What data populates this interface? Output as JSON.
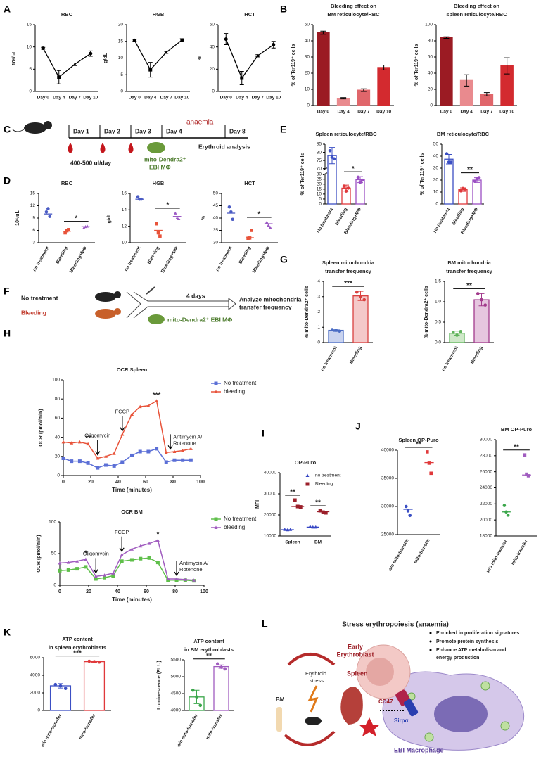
{
  "panel_labels": [
    "A",
    "B",
    "C",
    "D",
    "E",
    "F",
    "G",
    "H",
    "I",
    "J",
    "K",
    "L"
  ],
  "timeline": {
    "days": [
      "Day 1",
      "Day 2",
      "Day 3",
      "Day 4",
      "Day 8"
    ],
    "phase": "anaemia",
    "dose": "400-500 ul/day",
    "cells": [
      "mito-Dendra2⁺",
      "EBI MΦ"
    ],
    "readout": "Erythroid analysis"
  },
  "transfer_design": {
    "groups": [
      "No treatment",
      "Bleeding"
    ],
    "duration": "4 days",
    "readout": [
      "Analyze mitochondria",
      "transfer frequency"
    ],
    "cells": "mito-Dendra2⁺ EBI MΦ"
  },
  "model": {
    "title": "Stress erythropoiesis (anaemia)",
    "bullets": [
      "Enriched in proliferation signatures",
      "Promote protein synthesis",
      "Enhance ATP metabolism and",
      "energy production"
    ],
    "erythroblast": [
      "Early",
      "Erythroblast"
    ],
    "bm": "BM",
    "stress": [
      "Erythroid",
      "stress"
    ],
    "spleen": "Spleen",
    "ligand": "CD47",
    "receptor": "Sirpα",
    "macrophage": "EBI Macrophage"
  },
  "chart_data": [
    {
      "type": "line",
      "title": "RBC",
      "ylabel": "10⁶/uL",
      "categories": [
        "Day 0",
        "Day 4",
        "Day 7",
        "Day 10"
      ],
      "values": [
        9.7,
        3.2,
        6.1,
        8.5
      ],
      "errors": [
        0.2,
        1.5,
        0.3,
        0.6
      ],
      "color": "#000000",
      "ylim": [
        0,
        15
      ],
      "yticks": [
        0,
        5,
        10,
        15
      ]
    },
    {
      "type": "line",
      "title": "HGB",
      "ylabel": "g/dL",
      "categories": [
        "Day 0",
        "Day 4",
        "Day 7",
        "Day 10"
      ],
      "values": [
        15.3,
        6.5,
        11.7,
        15.4
      ],
      "errors": [
        0.3,
        2.2,
        0.3,
        0.4
      ],
      "color": "#000000",
      "ylim": [
        0,
        20
      ],
      "yticks": [
        0,
        5,
        10,
        15,
        20
      ]
    },
    {
      "type": "line",
      "title": "HCT",
      "ylabel": "%",
      "categories": [
        "Day 0",
        "Day 4",
        "Day 7",
        "Day 10"
      ],
      "values": [
        47,
        12,
        32,
        42
      ],
      "errors": [
        5,
        6,
        1,
        3
      ],
      "color": "#000000",
      "ylim": [
        0,
        60
      ],
      "yticks": [
        0,
        20,
        40,
        60
      ]
    },
    {
      "type": "bar",
      "title": [
        "Bleeding effect on",
        "BM reticulocyte/RBC"
      ],
      "ylabel": "% of Ter119⁺ cells",
      "categories": [
        "Day 0",
        "Day 4",
        "Day 7",
        "Day 10"
      ],
      "values": [
        45,
        4.5,
        9.5,
        23.5
      ],
      "errors": [
        1,
        0.4,
        0.8,
        1.5
      ],
      "colors": [
        "#9b1b23",
        "#e98a8e",
        "#e0666b",
        "#d32a2f"
      ],
      "ylim": [
        0,
        50
      ],
      "yticks": [
        0,
        10,
        20,
        30,
        40,
        50
      ]
    },
    {
      "type": "bar",
      "title": [
        "Bleeding effect on",
        "spleen reticulocyte/RBC"
      ],
      "ylabel": "% of Ter119⁺ cells",
      "categories": [
        "Day 0",
        "Day 4",
        "Day 7",
        "Day 10"
      ],
      "values": [
        84,
        31,
        14,
        49
      ],
      "errors": [
        1,
        7,
        2,
        10
      ],
      "colors": [
        "#9b1b23",
        "#e98a8e",
        "#e0666b",
        "#d32a2f"
      ],
      "ylim": [
        0,
        100
      ],
      "yticks": [
        0,
        20,
        40,
        60,
        80,
        100
      ]
    },
    {
      "type": "dot",
      "title": "RBC",
      "ylabel": "10⁶/uL",
      "categories": [
        "no treatment",
        "Bleeding",
        "Bleeding+MΦ"
      ],
      "values": [
        10,
        5.8,
        6.9
      ],
      "points": [
        [
          10.5,
          11.3,
          9.4
        ],
        [
          5.4,
          5.9,
          6.2
        ],
        [
          6.6,
          6.9,
          7.0
        ]
      ],
      "colors": [
        "#4a5bc4",
        "#e8533a",
        "#9b59c4"
      ],
      "ylim": [
        3,
        15
      ],
      "yticks": [
        3,
        6,
        9,
        12,
        15
      ],
      "significance": [
        {
          "label": "*",
          "between": [
            "Bleeding",
            "Bleeding+MΦ"
          ]
        }
      ]
    },
    {
      "type": "dot",
      "title": "HGB",
      "ylabel": "g/dL",
      "categories": [
        "no treatment",
        "Bleeding",
        "Bleeding+MΦ"
      ],
      "values": [
        15.3,
        11.5,
        13.2
      ],
      "points": [
        [
          15.6,
          15.3,
          15.3
        ],
        [
          12.3,
          11.2,
          10.8
        ],
        [
          13.6,
          13.0,
          12.9
        ]
      ],
      "colors": [
        "#4a5bc4",
        "#e8533a",
        "#9b59c4"
      ],
      "ylim": [
        10,
        16
      ],
      "yticks": [
        10,
        12,
        14,
        16
      ],
      "significance": [
        {
          "label": "*",
          "between": [
            "Bleeding",
            "Bleeding+MΦ"
          ]
        }
      ]
    },
    {
      "type": "dot",
      "title": "HCT",
      "ylabel": "%",
      "categories": [
        "no treatment",
        "Bleeding",
        "Bleeding+MΦ"
      ],
      "values": [
        42,
        32,
        37.7
      ],
      "points": [
        [
          44.5,
          42.5,
          39.5
        ],
        [
          31.8,
          31.9,
          35
        ],
        [
          38.3,
          37.1,
          36.2
        ]
      ],
      "colors": [
        "#4a5bc4",
        "#e8533a",
        "#9b59c4"
      ],
      "ylim": [
        30,
        50
      ],
      "yticks": [
        30,
        35,
        40,
        45,
        50
      ],
      "significance": [
        {
          "label": "*",
          "between": [
            "Bleeding",
            "Bleeding+MΦ"
          ]
        }
      ]
    },
    {
      "type": "bar",
      "bar_style": "outline",
      "title": "Spleen reticulocyte/RBC",
      "ylabel": "% of Ter119⁺ cells",
      "categories": [
        "No treatment",
        "Bleeding",
        "Bleeding+MΦ"
      ],
      "values": [
        78,
        16,
        24.5
      ],
      "errors": [
        5,
        3,
        3
      ],
      "points": [
        [
          81,
          77,
          76
        ],
        [
          18,
          13,
          16
        ],
        [
          27,
          22,
          24
        ]
      ],
      "colors": [
        "#3b4fc4",
        "#e0393b",
        "#9b4fc4"
      ],
      "ylim": [
        0,
        85
      ],
      "axis_break": [
        30,
        70
      ],
      "yticks": [
        0,
        5,
        10,
        15,
        20,
        25,
        30,
        70,
        75,
        80,
        85
      ],
      "significance": [
        {
          "label": "*",
          "between": [
            "Bleeding",
            "Bleeding+MΦ"
          ]
        }
      ]
    },
    {
      "type": "bar",
      "bar_style": "outline",
      "title": "BM reticulocyte/RBC",
      "ylabel": "% of Ter119⁺ cells",
      "categories": [
        "No treatment",
        "Bleeding",
        "Bleeding+MΦ"
      ],
      "values": [
        37.5,
        12,
        20
      ],
      "errors": [
        4,
        1.5,
        2
      ],
      "points": [
        [
          42,
          35,
          35
        ],
        [
          11,
          13,
          12.5
        ],
        [
          19,
          21,
          22
        ]
      ],
      "colors": [
        "#3b4fc4",
        "#e0393b",
        "#9b4fc4"
      ],
      "ylim": [
        0,
        50
      ],
      "yticks": [
        0,
        10,
        20,
        30,
        40,
        50
      ],
      "significance": [
        {
          "label": "**",
          "between": [
            "Bleeding",
            "Bleeding+MΦ"
          ]
        }
      ]
    },
    {
      "type": "bar",
      "title": [
        "Spleen mitochondria",
        "transfer frequency"
      ],
      "ylabel": "% mito-Dendra2⁺ cells",
      "categories": [
        "no treatment",
        "Bleeding"
      ],
      "values": [
        0.8,
        3.05
      ],
      "errors": [
        0.07,
        0.3
      ],
      "points": [
        [
          0.85,
          0.8,
          0.75
        ],
        [
          3.3,
          3.0,
          2.8
        ]
      ],
      "colors": [
        "#4a6cc4",
        "#d9413f"
      ],
      "fill_colors": [
        "#c9d3ef",
        "#f4c9c9"
      ],
      "ylim": [
        0,
        4
      ],
      "yticks": [
        0,
        1,
        2,
        3,
        4
      ],
      "significance": [
        {
          "label": "***",
          "between": [
            "no treatment",
            "Bleeding"
          ]
        }
      ]
    },
    {
      "type": "bar",
      "title": [
        "BM mitochondria",
        "transfer frequency"
      ],
      "ylabel": "% mito-Dendra2⁺ cells",
      "categories": [
        "no treatment",
        "Bleeding"
      ],
      "values": [
        0.23,
        1.05
      ],
      "errors": [
        0.05,
        0.15
      ],
      "points": [
        [
          0.25,
          0.18,
          0.27
        ],
        [
          1.2,
          1.05,
          0.92
        ]
      ],
      "colors": [
        "#5fb35a",
        "#a23a8c"
      ],
      "fill_colors": [
        "#cfe8c9",
        "#e6c6df"
      ],
      "ylim": [
        0,
        1.5
      ],
      "yticks": [
        {
          "value": 0,
          "label": "0.0"
        },
        0.5,
        {
          "value": 1,
          "label": "1.0"
        },
        1.5
      ],
      "significance": [
        {
          "label": "**",
          "between": [
            "no treatment",
            "Bleeding"
          ]
        }
      ]
    },
    {
      "type": "line",
      "title": "OCR Spleen",
      "xlabel": "Time (minutes)",
      "ylabel": "OCR (pmol/min)",
      "x": [
        0,
        6,
        12,
        18,
        25,
        31,
        37,
        43,
        50,
        56,
        62,
        68,
        75,
        81,
        87,
        93
      ],
      "series": [
        {
          "name": "No treatment",
          "color": "#5b6fd6",
          "values": [
            18,
            15,
            15,
            13,
            8,
            11,
            10,
            14,
            21,
            25,
            25,
            28,
            14,
            16,
            16,
            16
          ]
        },
        {
          "name": "bleeding",
          "color": "#e8533a",
          "values": [
            35,
            34,
            35,
            33,
            18,
            20,
            23,
            43,
            64,
            72,
            73,
            78,
            24,
            25,
            26,
            28
          ]
        }
      ],
      "xlim": [
        0,
        100
      ],
      "xticks": [
        0,
        20,
        40,
        60,
        80,
        100
      ],
      "ylim": [
        0,
        100
      ],
      "yticks": [
        0,
        20,
        40,
        60,
        80,
        100
      ],
      "treatments": [
        {
          "label": "Oligomycin",
          "x": 25
        },
        {
          "label": "FCCP",
          "x": 43
        },
        {
          "label": [
            "Antimycin A/",
            "Rotenone"
          ],
          "x": 78
        }
      ],
      "significance": [
        {
          "label": "**",
          "x": 18
        },
        {
          "label": "***",
          "x": 68
        }
      ]
    },
    {
      "type": "line",
      "title": "OCR BM",
      "xlabel": "Time (minutes)",
      "ylabel": "OCR (pmol/min)",
      "x": [
        0,
        6,
        12,
        18,
        25,
        31,
        37,
        43,
        50,
        56,
        62,
        68,
        75,
        81,
        87,
        93
      ],
      "series": [
        {
          "name": "No treatment",
          "color": "#5fbf4a",
          "values": [
            23,
            24,
            26,
            29,
            10,
            12,
            15,
            38,
            40,
            42,
            43,
            36,
            8,
            8,
            8,
            7
          ]
        },
        {
          "name": "bleeding",
          "color": "#a05cbf",
          "values": [
            35,
            36,
            38,
            41,
            14,
            16,
            19,
            48,
            57,
            62,
            66,
            71,
            10,
            10,
            9,
            8
          ]
        }
      ],
      "xlim": [
        0,
        100
      ],
      "xticks": [
        0,
        20,
        40,
        60,
        80,
        100
      ],
      "ylim": [
        0,
        100
      ],
      "yticks": [
        0,
        50,
        100
      ],
      "treatments": [
        {
          "label": "Oligomycin",
          "x": 25
        },
        {
          "label": "FCCP",
          "x": 43
        },
        {
          "label": [
            "Antimycin A/",
            "Rotenone"
          ],
          "x": 81
        }
      ],
      "significance": [
        {
          "label": "*",
          "x": 18
        },
        {
          "label": "*",
          "x": 68
        }
      ]
    },
    {
      "type": "dot",
      "title": "OP-Puro",
      "ylabel": "MFI",
      "categories": [
        "Spleen",
        "BM"
      ],
      "series": [
        {
          "name": "no treatment",
          "color": "#3545c4",
          "marker": "triangle",
          "values": [
            13000,
            14200
          ],
          "points": [
            [
              13100,
              12900,
              13100
            ],
            [
              14500,
              14200,
              14200
            ]
          ]
        },
        {
          "name": "Bleeding",
          "color": "#9b1f2a",
          "marker": "square",
          "values": [
            24000,
            21500
          ],
          "points": [
            [
              27000,
              24000,
              23800
            ],
            [
              22000,
              21300,
              21000
            ]
          ]
        }
      ],
      "ylim": [
        10000,
        40000
      ],
      "yticks": [
        10000,
        20000,
        30000,
        40000
      ],
      "significance": [
        {
          "label": "**",
          "category": "Spleen"
        },
        {
          "label": "**",
          "category": "BM"
        }
      ]
    },
    {
      "type": "dot",
      "title": "Spleen OP-Puro",
      "categories": [
        "w/o mito-transfer",
        "mito-transfer"
      ],
      "values": [
        29500,
        37800
      ],
      "points": [
        [
          30000,
          29200,
          28400
        ],
        [
          39700,
          37700,
          35900
        ]
      ],
      "colors": [
        "#3b4fc4",
        "#e0393b"
      ],
      "ylim": [
        25000,
        40000
      ],
      "yticks": [
        25000,
        30000,
        35000,
        40000
      ],
      "significance": [
        {
          "label": "**",
          "between": [
            "w/o mito-transfer",
            "mito-transfer"
          ]
        }
      ]
    },
    {
      "type": "dot",
      "title": "BM OP-Puro",
      "categories": [
        "w/o mito-transfer",
        "mito-transfer"
      ],
      "values": [
        21000,
        25600
      ],
      "points": [
        [
          21800,
          21000,
          20600
        ],
        [
          28100,
          25700,
          25500
        ]
      ],
      "colors": [
        "#3aa64a",
        "#a05cbf"
      ],
      "ylim": [
        18000,
        30000
      ],
      "yticks": [
        18000,
        20000,
        22000,
        24000,
        26000,
        28000,
        30000
      ],
      "significance": [
        {
          "label": "**",
          "between": [
            "w/o mito-transfer",
            "mito-transfer"
          ]
        }
      ]
    },
    {
      "type": "bar",
      "bar_style": "outline",
      "title": [
        "ATP content",
        "in spleen erythroblasts"
      ],
      "categories": [
        "w/o mito-transfer",
        "mito-transfer"
      ],
      "values": [
        2800,
        5550
      ],
      "errors": [
        250,
        80
      ],
      "points": [
        [
          2950,
          2800,
          2500
        ],
        [
          5600,
          5550,
          5500
        ]
      ],
      "colors": [
        "#3b4fc4",
        "#e0393b"
      ],
      "ylim": [
        0,
        6000
      ],
      "yticks": [
        0,
        2000,
        4000,
        6000
      ],
      "significance": [
        {
          "label": "***",
          "between": [
            "w/o mito-transfer",
            "mito-transfer"
          ]
        }
      ]
    },
    {
      "type": "bar",
      "bar_style": "outline",
      "title": [
        "ATP content",
        "in BM erythroblasts"
      ],
      "ylabel": "Luminescence (RLU)",
      "categories": [
        "w/o mito-transfer",
        "mito-transfer"
      ],
      "values": [
        4400,
        5300
      ],
      "errors": [
        200,
        50
      ],
      "points": [
        [
          4600,
          4400,
          4150
        ],
        [
          5380,
          5280,
          5230
        ]
      ],
      "colors": [
        "#3aa64a",
        "#a05cbf"
      ],
      "ylim": [
        4000,
        5500
      ],
      "yticks": [
        4000,
        4500,
        5000,
        5500
      ],
      "significance": [
        {
          "label": "**",
          "between": [
            "w/o mito-transfer",
            "mito-transfer"
          ]
        }
      ]
    }
  ]
}
